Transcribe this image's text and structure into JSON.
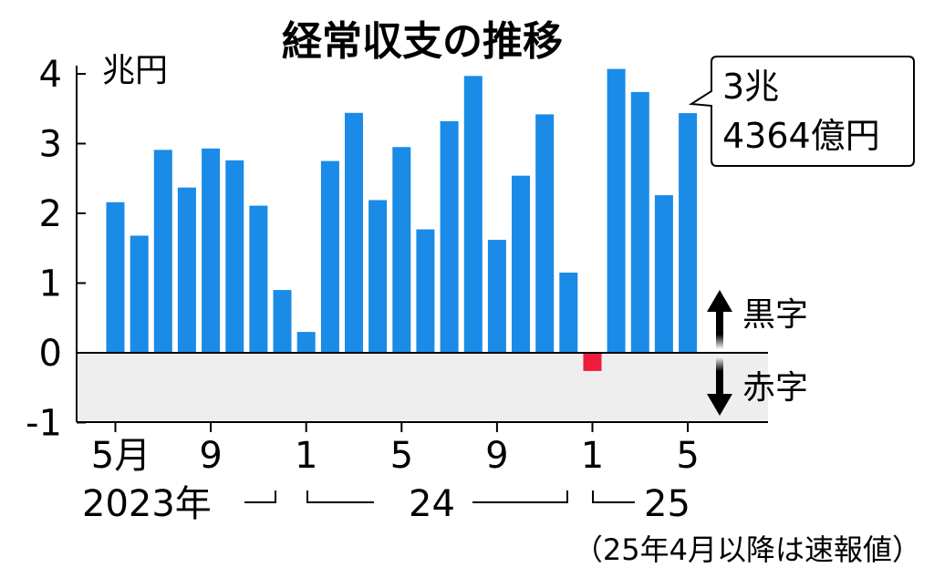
{
  "chart_data": {
    "type": "bar",
    "title": "経常収支の推移",
    "y_unit": "兆円",
    "ylim": [
      -1,
      4
    ],
    "y_ticks": [
      "-1",
      "0",
      "1",
      "2",
      "3",
      "4"
    ],
    "x_tick_labels": [
      "5月",
      "9",
      "1",
      "5",
      "9",
      "1",
      "5"
    ],
    "year_labels": [
      "2023年",
      "24",
      "25"
    ],
    "categories": [
      "2023-05",
      "2023-06",
      "2023-07",
      "2023-08",
      "2023-09",
      "2023-10",
      "2023-11",
      "2023-12",
      "2024-01",
      "2024-02",
      "2024-03",
      "2024-04",
      "2024-05",
      "2024-06",
      "2024-07",
      "2024-08",
      "2024-09",
      "2024-10",
      "2024-11",
      "2024-12",
      "2025-01",
      "2025-02",
      "2025-03",
      "2025-04",
      "2025-05"
    ],
    "values": [
      2.16,
      1.68,
      2.91,
      2.37,
      2.93,
      2.76,
      2.11,
      0.9,
      0.3,
      2.75,
      3.44,
      2.19,
      2.95,
      1.77,
      3.32,
      3.97,
      1.62,
      2.54,
      3.42,
      1.15,
      -0.26,
      4.07,
      3.74,
      2.26,
      3.4364
    ],
    "surplus_label": "黒字",
    "deficit_label": "赤字",
    "callout": [
      "3兆",
      "4364億円"
    ],
    "footnote": "（25年4月以降は速報値）",
    "colors": {
      "positive": "#1a8be6",
      "negative": "#ef1b3c",
      "deficit_area": "#eeeeee"
    }
  }
}
